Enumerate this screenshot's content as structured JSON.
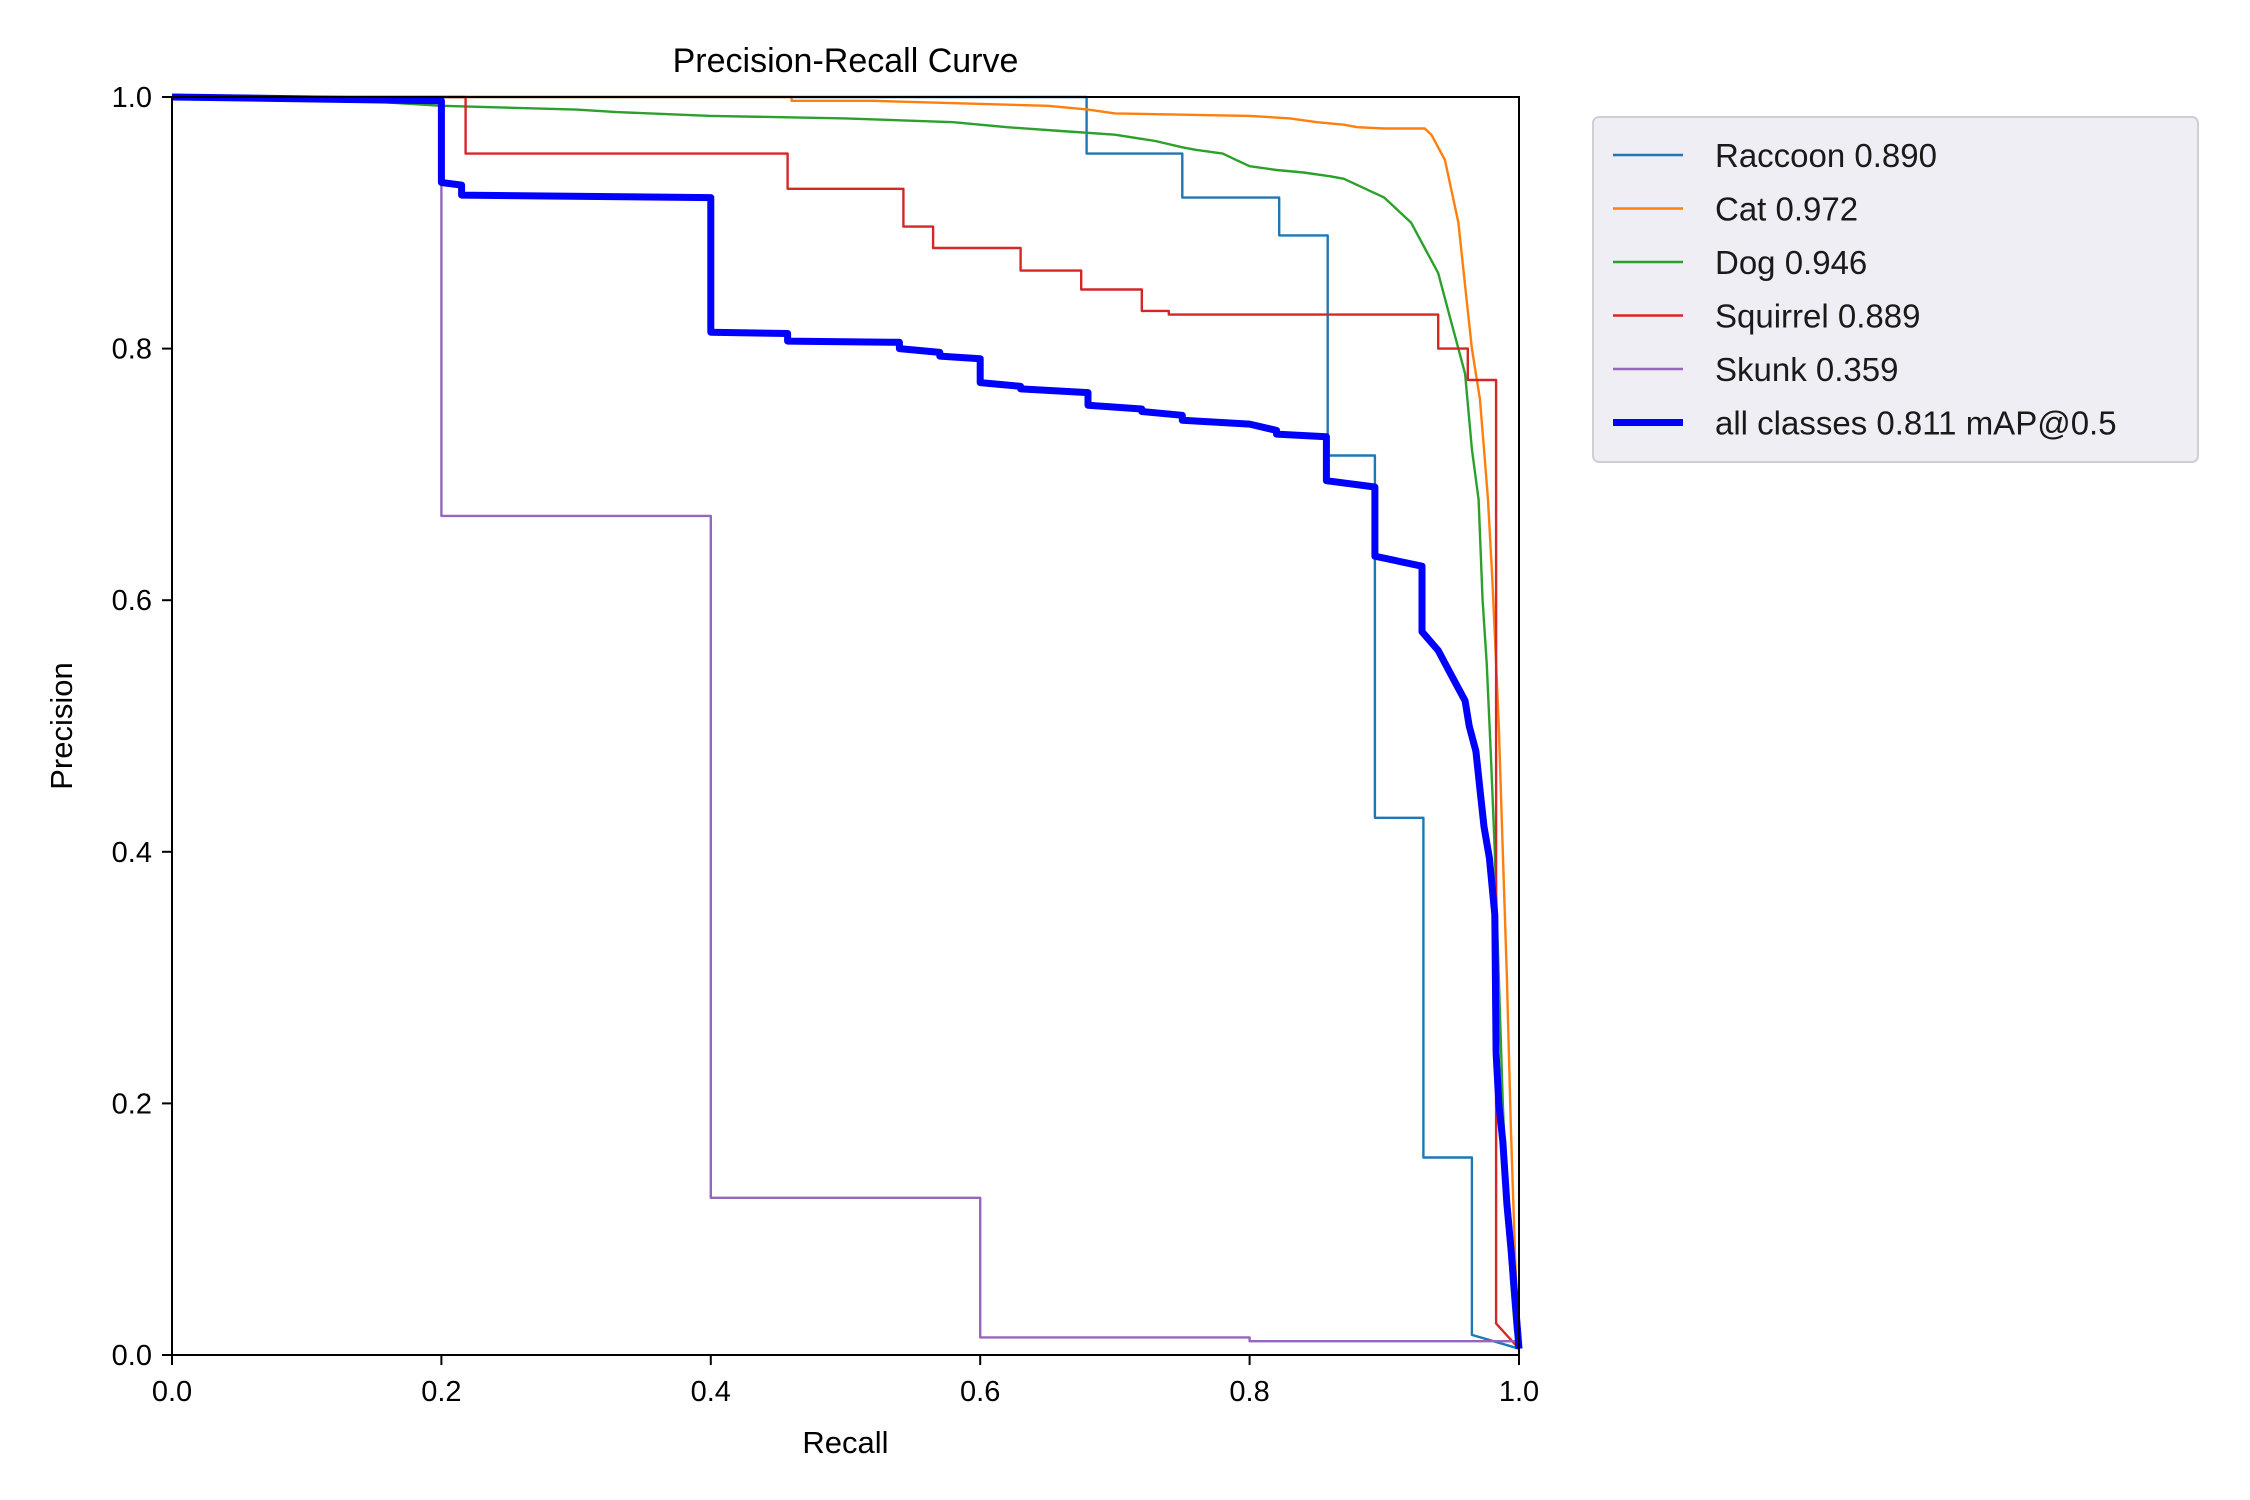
{
  "chart_data": {
    "type": "line",
    "title": "Precision-Recall Curve",
    "xlabel": "Recall",
    "ylabel": "Precision",
    "xlim": [
      0,
      1
    ],
    "ylim": [
      0,
      1
    ],
    "xticks": [
      "0.0",
      "0.2",
      "0.4",
      "0.6",
      "0.8",
      "1.0"
    ],
    "yticks": [
      "0.0",
      "0.2",
      "0.4",
      "0.6",
      "0.8",
      "1.0"
    ],
    "grid": false,
    "legend_position": "outside-top-right",
    "series": [
      {
        "name": "Raccoon 0.890",
        "color": "#1f77b4",
        "width": "thin",
        "x": [
          0.0,
          0.679,
          0.679,
          0.75,
          0.75,
          0.822,
          0.822,
          0.858,
          0.858,
          0.893,
          0.893,
          0.929,
          0.929,
          0.965,
          0.965,
          1.0
        ],
        "y": [
          1.0,
          1.0,
          0.955,
          0.955,
          0.92,
          0.92,
          0.89,
          0.89,
          0.715,
          0.715,
          0.427,
          0.427,
          0.157,
          0.157,
          0.016,
          0.005
        ]
      },
      {
        "name": "Cat 0.972",
        "color": "#ff7f0e",
        "width": "thin",
        "x": [
          0.0,
          0.46,
          0.46,
          0.52,
          0.65,
          0.68,
          0.7,
          0.8,
          0.83,
          0.85,
          0.87,
          0.88,
          0.9,
          0.93,
          0.935,
          0.945,
          0.955,
          0.96,
          0.965,
          0.968,
          0.971,
          0.974,
          0.977,
          0.98,
          0.983,
          0.985,
          0.988,
          0.991,
          0.994,
          0.997,
          1.0
        ],
        "y": [
          1.0,
          1.0,
          0.997,
          0.997,
          0.993,
          0.99,
          0.987,
          0.985,
          0.983,
          0.98,
          0.978,
          0.976,
          0.975,
          0.975,
          0.97,
          0.95,
          0.9,
          0.85,
          0.8,
          0.78,
          0.76,
          0.72,
          0.68,
          0.62,
          0.55,
          0.5,
          0.4,
          0.3,
          0.18,
          0.08,
          0.005
        ]
      },
      {
        "name": "Dog 0.946",
        "color": "#2ca02c",
        "width": "thin",
        "x": [
          0.0,
          0.14,
          0.2,
          0.3,
          0.33,
          0.4,
          0.5,
          0.58,
          0.62,
          0.66,
          0.7,
          0.73,
          0.75,
          0.76,
          0.78,
          0.79,
          0.8,
          0.82,
          0.84,
          0.86,
          0.87,
          0.88,
          0.89,
          0.9,
          0.91,
          0.92,
          0.93,
          0.94,
          0.945,
          0.95,
          0.955,
          0.96,
          0.965,
          0.97,
          0.973,
          0.976,
          0.979,
          0.982,
          0.985,
          0.988,
          0.991,
          0.994,
          0.997,
          1.0
        ],
        "y": [
          1.0,
          0.997,
          0.993,
          0.99,
          0.988,
          0.985,
          0.983,
          0.98,
          0.976,
          0.973,
          0.97,
          0.965,
          0.96,
          0.958,
          0.955,
          0.95,
          0.945,
          0.942,
          0.94,
          0.937,
          0.935,
          0.93,
          0.925,
          0.92,
          0.91,
          0.9,
          0.88,
          0.86,
          0.84,
          0.82,
          0.8,
          0.78,
          0.72,
          0.68,
          0.6,
          0.55,
          0.48,
          0.4,
          0.3,
          0.2,
          0.12,
          0.06,
          0.02,
          0.005
        ]
      },
      {
        "name": "Squirrel 0.889",
        "color": "#d62728",
        "width": "thin",
        "x": [
          0.0,
          0.218,
          0.218,
          0.457,
          0.457,
          0.543,
          0.543,
          0.565,
          0.565,
          0.63,
          0.63,
          0.675,
          0.675,
          0.72,
          0.72,
          0.74,
          0.74,
          0.94,
          0.94,
          0.962,
          0.962,
          0.983,
          0.983,
          1.0
        ],
        "y": [
          1.0,
          1.0,
          0.955,
          0.955,
          0.927,
          0.927,
          0.897,
          0.897,
          0.88,
          0.88,
          0.862,
          0.862,
          0.847,
          0.847,
          0.83,
          0.83,
          0.827,
          0.827,
          0.8,
          0.8,
          0.775,
          0.775,
          0.025,
          0.005
        ]
      },
      {
        "name": "Skunk 0.359",
        "color": "#9467bd",
        "width": "thin",
        "x": [
          0.0,
          0.2,
          0.2,
          0.4,
          0.4,
          0.6,
          0.6,
          0.8,
          0.8,
          1.0
        ],
        "y": [
          1.0,
          1.0,
          0.667,
          0.667,
          0.125,
          0.125,
          0.014,
          0.014,
          0.011,
          0.011
        ]
      },
      {
        "name": "all classes 0.811 mAP@0.5",
        "color": "#0000ff",
        "width": "thick",
        "x": [
          0.0,
          0.2,
          0.2,
          0.215,
          0.215,
          0.4,
          0.4,
          0.457,
          0.457,
          0.54,
          0.54,
          0.57,
          0.57,
          0.6,
          0.6,
          0.63,
          0.63,
          0.68,
          0.68,
          0.72,
          0.72,
          0.75,
          0.75,
          0.8,
          0.82,
          0.82,
          0.857,
          0.857,
          0.893,
          0.893,
          0.928,
          0.928,
          0.94,
          0.95,
          0.96,
          0.963,
          0.968,
          0.971,
          0.974,
          0.978,
          0.982,
          0.983,
          0.985,
          0.988,
          0.991,
          0.994,
          0.997,
          1.0
        ],
        "y": [
          1.0,
          0.997,
          0.932,
          0.93,
          0.922,
          0.92,
          0.813,
          0.812,
          0.806,
          0.805,
          0.8,
          0.797,
          0.794,
          0.792,
          0.773,
          0.77,
          0.768,
          0.765,
          0.755,
          0.752,
          0.75,
          0.747,
          0.743,
          0.74,
          0.735,
          0.732,
          0.73,
          0.695,
          0.69,
          0.635,
          0.627,
          0.575,
          0.56,
          0.54,
          0.52,
          0.5,
          0.48,
          0.45,
          0.42,
          0.395,
          0.35,
          0.24,
          0.2,
          0.17,
          0.12,
          0.085,
          0.045,
          0.005
        ]
      }
    ]
  }
}
